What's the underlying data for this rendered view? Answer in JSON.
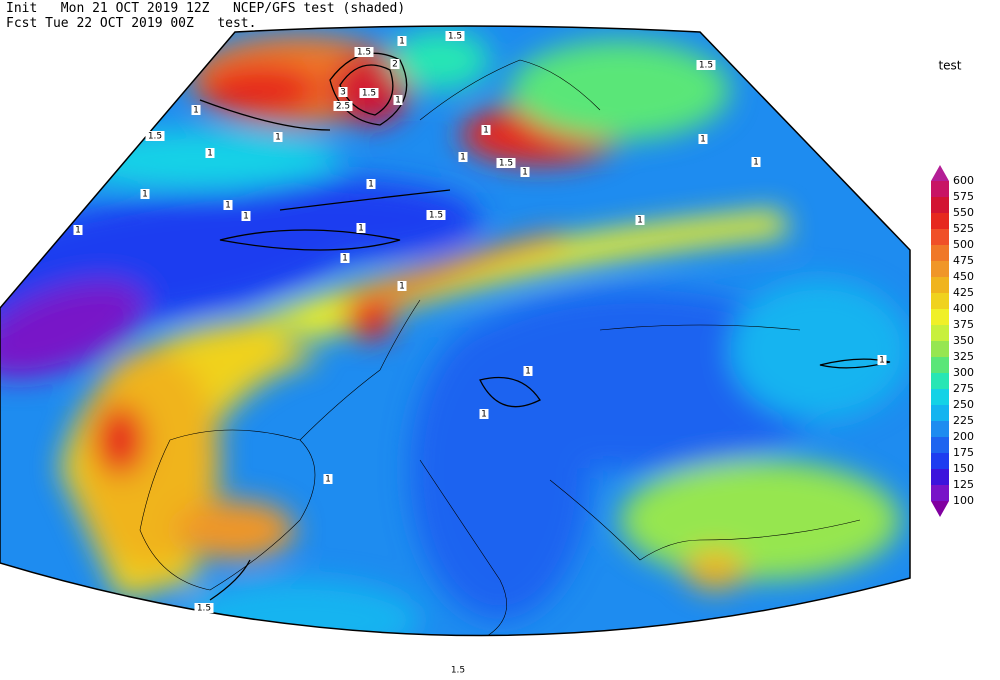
{
  "header": {
    "line1": "Init   Mon 21 OCT 2019 12Z   NCEP/GFS test (shaded)",
    "line2": "Fcst Tue 22 OCT 2019 00Z   test."
  },
  "legend": {
    "title": "test",
    "levels": [
      600,
      575,
      550,
      525,
      500,
      475,
      450,
      425,
      400,
      375,
      350,
      325,
      300,
      275,
      250,
      225,
      200,
      175,
      150,
      125,
      100
    ],
    "colors": [
      "#b41e96",
      "#c81464",
      "#d21432",
      "#e6281e",
      "#f05028",
      "#f07828",
      "#f09628",
      "#f0b41e",
      "#f0d21e",
      "#f0f028",
      "#c8f03c",
      "#96e650",
      "#5ae678",
      "#28e6b4",
      "#14d2e6",
      "#14b4f0",
      "#1e8cf0",
      "#1e64f0",
      "#1e3cf0",
      "#3c14dc",
      "#7814c8",
      "#8000a0"
    ]
  },
  "contour_labels": [
    "1.5",
    "1",
    "1.5",
    "2",
    "3",
    "2.5",
    "1.5",
    "1",
    "1.5",
    "1",
    "1.5",
    "1",
    "1",
    "1",
    "1",
    "1.5",
    "1",
    "1",
    "1",
    "1",
    "1",
    "1",
    "1",
    "1.5",
    "1",
    "1",
    "1",
    "1",
    "1",
    "1",
    "1",
    "1",
    "1",
    "1.5",
    "1.5"
  ]
}
